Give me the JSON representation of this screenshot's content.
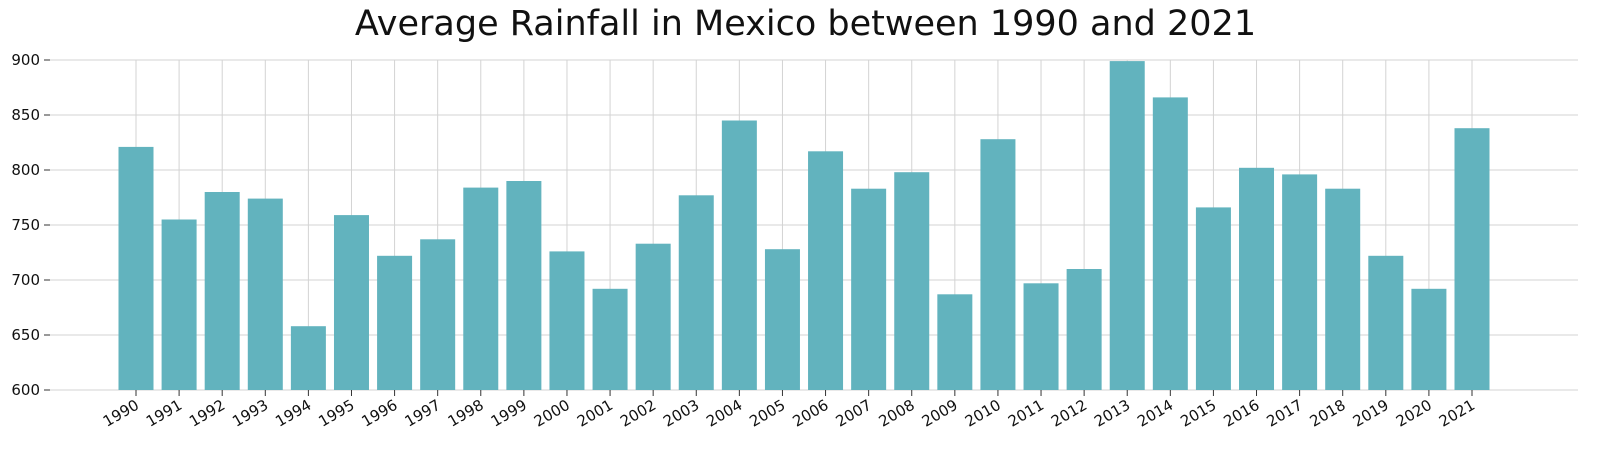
{
  "chart_data": {
    "type": "bar",
    "title": "Average Rainfall in Mexico between 1990 and 2021",
    "xlabel": "",
    "ylabel": "",
    "categories": [
      "1990",
      "1991",
      "1992",
      "1993",
      "1994",
      "1995",
      "1996",
      "1997",
      "1998",
      "1999",
      "2000",
      "2001",
      "2002",
      "2003",
      "2004",
      "2005",
      "2006",
      "2007",
      "2008",
      "2009",
      "2010",
      "2011",
      "2012",
      "2013",
      "2014",
      "2015",
      "2016",
      "2017",
      "2018",
      "2019",
      "2020",
      "2021"
    ],
    "values": [
      821,
      755,
      780,
      774,
      658,
      759,
      722,
      737,
      784,
      790,
      726,
      692,
      733,
      777,
      845,
      728,
      817,
      783,
      798,
      687,
      828,
      697,
      710,
      899,
      866,
      766,
      802,
      796,
      783,
      722,
      692,
      838
    ],
    "ylim": [
      600,
      900
    ],
    "yticks": [
      600,
      650,
      700,
      750,
      800,
      850,
      900
    ],
    "grid": true,
    "colors": {
      "bar": "#62b3be",
      "grid": "#d3d3d3"
    }
  }
}
